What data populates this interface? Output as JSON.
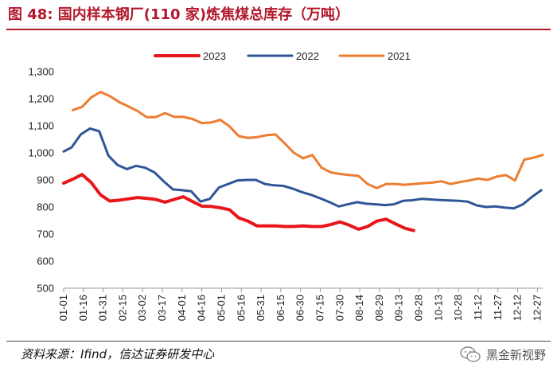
{
  "figure": {
    "title": "图 48:  国内样本钢厂(110 家)炼焦煤总库存（万吨）",
    "source": "资料来源：Ifind，信达证券研发中心",
    "watermark": "黑金新视野"
  },
  "chart_data": {
    "type": "line",
    "title": "",
    "xlabel": "",
    "ylabel": "",
    "ylim": [
      500,
      1300
    ],
    "yticks": [
      500,
      600,
      700,
      800,
      900,
      1000,
      1100,
      1200,
      1300
    ],
    "ytick_labels": [
      "500",
      "600",
      "700",
      "800",
      "900",
      "1,000",
      "1,100",
      "1,200",
      "1,300"
    ],
    "grid": false,
    "legend_position": "top",
    "x_tick_labels": [
      "01-01",
      "01-16",
      "01-31",
      "02-15",
      "03-02",
      "03-17",
      "04-01",
      "04-16",
      "05-01",
      "05-16",
      "05-31",
      "06-15",
      "06-30",
      "07-15",
      "07-30",
      "08-14",
      "08-29",
      "09-13",
      "09-28",
      "10-13",
      "10-28",
      "11-12",
      "11-27",
      "12-12",
      "12-27"
    ],
    "x_domain": [
      "01-01",
      "12-31"
    ],
    "series": [
      {
        "name": "2023",
        "color": "#e8161b",
        "points": [
          [
            "01-01",
            888
          ],
          [
            "01-08",
            903
          ],
          [
            "01-15",
            920
          ],
          [
            "01-22",
            890
          ],
          [
            "01-29",
            845
          ],
          [
            "02-05",
            822
          ],
          [
            "02-12",
            825
          ],
          [
            "02-19",
            830
          ],
          [
            "02-26",
            835
          ],
          [
            "03-05",
            832
          ],
          [
            "03-12",
            828
          ],
          [
            "03-19",
            818
          ],
          [
            "03-26",
            828
          ],
          [
            "04-02",
            838
          ],
          [
            "04-09",
            820
          ],
          [
            "04-16",
            803
          ],
          [
            "04-23",
            802
          ],
          [
            "04-30",
            797
          ],
          [
            "05-07",
            790
          ],
          [
            "05-14",
            760
          ],
          [
            "05-21",
            748
          ],
          [
            "05-28",
            730
          ],
          [
            "06-04",
            730
          ],
          [
            "06-11",
            730
          ],
          [
            "06-18",
            728
          ],
          [
            "06-25",
            728
          ],
          [
            "07-02",
            730
          ],
          [
            "07-09",
            728
          ],
          [
            "07-16",
            728
          ],
          [
            "07-23",
            735
          ],
          [
            "07-30",
            745
          ],
          [
            "08-06",
            733
          ],
          [
            "08-13",
            718
          ],
          [
            "08-20",
            728
          ],
          [
            "08-27",
            748
          ],
          [
            "09-03",
            755
          ],
          [
            "09-10",
            738
          ],
          [
            "09-17",
            722
          ],
          [
            "09-24",
            713
          ]
        ]
      },
      {
        "name": "2022",
        "color": "#2f5597",
        "points": [
          [
            "01-01",
            1005
          ],
          [
            "01-07",
            1020
          ],
          [
            "01-14",
            1068
          ],
          [
            "01-21",
            1090
          ],
          [
            "01-28",
            1080
          ],
          [
            "02-04",
            990
          ],
          [
            "02-11",
            955
          ],
          [
            "02-18",
            940
          ],
          [
            "02-25",
            952
          ],
          [
            "03-04",
            945
          ],
          [
            "03-11",
            928
          ],
          [
            "03-18",
            895
          ],
          [
            "03-25",
            865
          ],
          [
            "04-01",
            862
          ],
          [
            "04-08",
            858
          ],
          [
            "04-15",
            820
          ],
          [
            "04-22",
            830
          ],
          [
            "04-29",
            872
          ],
          [
            "05-06",
            885
          ],
          [
            "05-13",
            898
          ],
          [
            "05-20",
            900
          ],
          [
            "05-27",
            900
          ],
          [
            "06-03",
            885
          ],
          [
            "06-10",
            880
          ],
          [
            "06-17",
            878
          ],
          [
            "06-24",
            868
          ],
          [
            "07-01",
            855
          ],
          [
            "07-08",
            845
          ],
          [
            "07-15",
            832
          ],
          [
            "07-22",
            818
          ],
          [
            "07-29",
            802
          ],
          [
            "08-05",
            810
          ],
          [
            "08-12",
            818
          ],
          [
            "08-19",
            812
          ],
          [
            "08-26",
            810
          ],
          [
            "09-02",
            807
          ],
          [
            "09-09",
            810
          ],
          [
            "09-16",
            823
          ],
          [
            "09-23",
            825
          ],
          [
            "09-30",
            830
          ],
          [
            "10-07",
            828
          ],
          [
            "10-14",
            826
          ],
          [
            "10-21",
            824
          ],
          [
            "10-28",
            823
          ],
          [
            "11-04",
            820
          ],
          [
            "11-11",
            806
          ],
          [
            "11-18",
            800
          ],
          [
            "11-25",
            802
          ],
          [
            "12-02",
            798
          ],
          [
            "12-09",
            795
          ],
          [
            "12-16",
            810
          ],
          [
            "12-23",
            838
          ],
          [
            "12-30",
            862
          ]
        ]
      },
      {
        "name": "2021",
        "color": "#ed7d31",
        "points": [
          [
            "01-08",
            1158
          ],
          [
            "01-15",
            1170
          ],
          [
            "01-22",
            1205
          ],
          [
            "01-29",
            1225
          ],
          [
            "02-05",
            1210
          ],
          [
            "02-12",
            1188
          ],
          [
            "02-19",
            1172
          ],
          [
            "02-26",
            1155
          ],
          [
            "03-05",
            1132
          ],
          [
            "03-12",
            1132
          ],
          [
            "03-19",
            1147
          ],
          [
            "03-26",
            1133
          ],
          [
            "04-02",
            1133
          ],
          [
            "04-09",
            1125
          ],
          [
            "04-16",
            1110
          ],
          [
            "04-23",
            1112
          ],
          [
            "04-30",
            1122
          ],
          [
            "05-07",
            1098
          ],
          [
            "05-14",
            1062
          ],
          [
            "05-21",
            1055
          ],
          [
            "05-28",
            1058
          ],
          [
            "06-04",
            1065
          ],
          [
            "06-11",
            1068
          ],
          [
            "06-18",
            1035
          ],
          [
            "06-25",
            1000
          ],
          [
            "07-02",
            980
          ],
          [
            "07-09",
            992
          ],
          [
            "07-16",
            945
          ],
          [
            "07-23",
            928
          ],
          [
            "07-30",
            922
          ],
          [
            "08-06",
            918
          ],
          [
            "08-13",
            915
          ],
          [
            "08-20",
            885
          ],
          [
            "08-27",
            870
          ],
          [
            "09-03",
            885
          ],
          [
            "09-10",
            885
          ],
          [
            "09-17",
            882
          ],
          [
            "09-24",
            885
          ],
          [
            "10-01",
            888
          ],
          [
            "10-08",
            890
          ],
          [
            "10-15",
            895
          ],
          [
            "10-22",
            885
          ],
          [
            "10-29",
            892
          ],
          [
            "11-05",
            898
          ],
          [
            "11-12",
            905
          ],
          [
            "11-19",
            900
          ],
          [
            "11-26",
            912
          ],
          [
            "12-03",
            918
          ],
          [
            "12-10",
            898
          ],
          [
            "12-17",
            975
          ],
          [
            "12-24",
            982
          ],
          [
            "12-31",
            992
          ]
        ]
      }
    ]
  }
}
